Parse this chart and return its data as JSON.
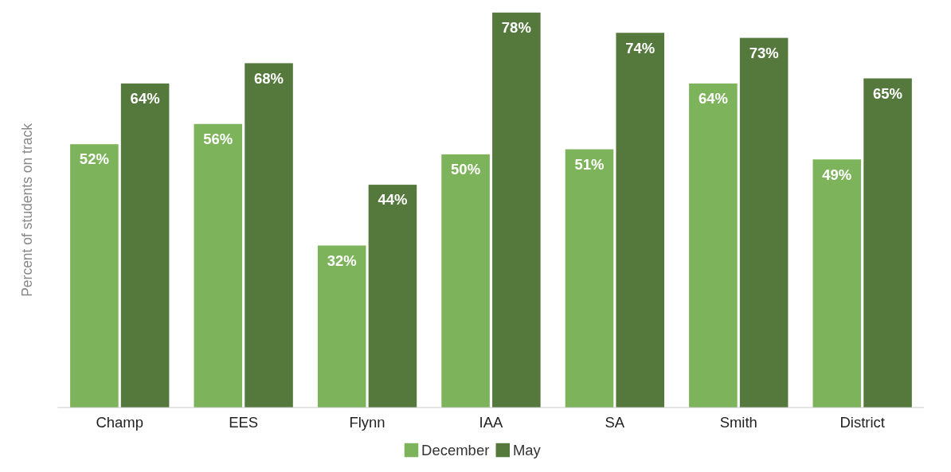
{
  "chart_data": {
    "type": "bar",
    "ylabel": "Percent of students on track",
    "categories": [
      "Champ",
      "EES",
      "Flynn",
      "IAA",
      "SA",
      "Smith",
      "District"
    ],
    "series": [
      {
        "name": "December",
        "color": "#7db35a",
        "values": [
          52,
          56,
          32,
          50,
          51,
          64,
          49
        ],
        "value_labels": [
          "52%",
          "56%",
          "32%",
          "50%",
          "51%",
          "64%",
          "49%"
        ]
      },
      {
        "name": "May",
        "color": "#55793c",
        "values": [
          64,
          68,
          44,
          78,
          74,
          73,
          65
        ],
        "value_labels": [
          "64%",
          "68%",
          "44%",
          "78%",
          "74%",
          "73%",
          "65%"
        ]
      }
    ],
    "ylim": [
      0,
      78
    ],
    "tick_labels": "x",
    "legend": "bottom"
  }
}
